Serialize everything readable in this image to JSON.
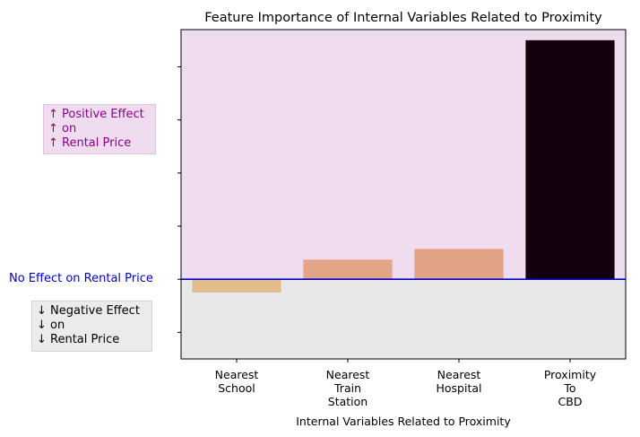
{
  "chart_data": {
    "type": "bar",
    "title": "Feature Importance of Internal Variables Related to Proximity",
    "xlabel": "Internal Variables Related to Proximity",
    "ylabel": "",
    "categories": [
      [
        "Nearest",
        "School"
      ],
      [
        "Nearest",
        "Train",
        "Station"
      ],
      [
        "Nearest",
        "Hospital"
      ],
      [
        "Proximity",
        "To",
        "CBD"
      ]
    ],
    "values": [
      -0.25,
      0.37,
      0.57,
      4.5
    ],
    "bar_colors": [
      "#e3bc8c",
      "#e2a587",
      "#e2a285",
      "#120010"
    ],
    "ylim": [
      -1.5,
      4.7
    ],
    "y_ticks": [
      -1,
      0,
      1,
      2,
      3,
      4
    ],
    "y_tick_labels_shown": false,
    "grid": false,
    "zero_line_color": "#0000cc",
    "positive_region_color": "#efdcee",
    "negative_region_color": "#e8e8e8",
    "annotations": {
      "zero_line_label": "No Effect on Rental Price",
      "positive": "↑ Positive Effect\n↑ on\n↑ Rental Price",
      "negative": "↓ Negative Effect\n↓ on\n↓ Rental Price"
    }
  }
}
